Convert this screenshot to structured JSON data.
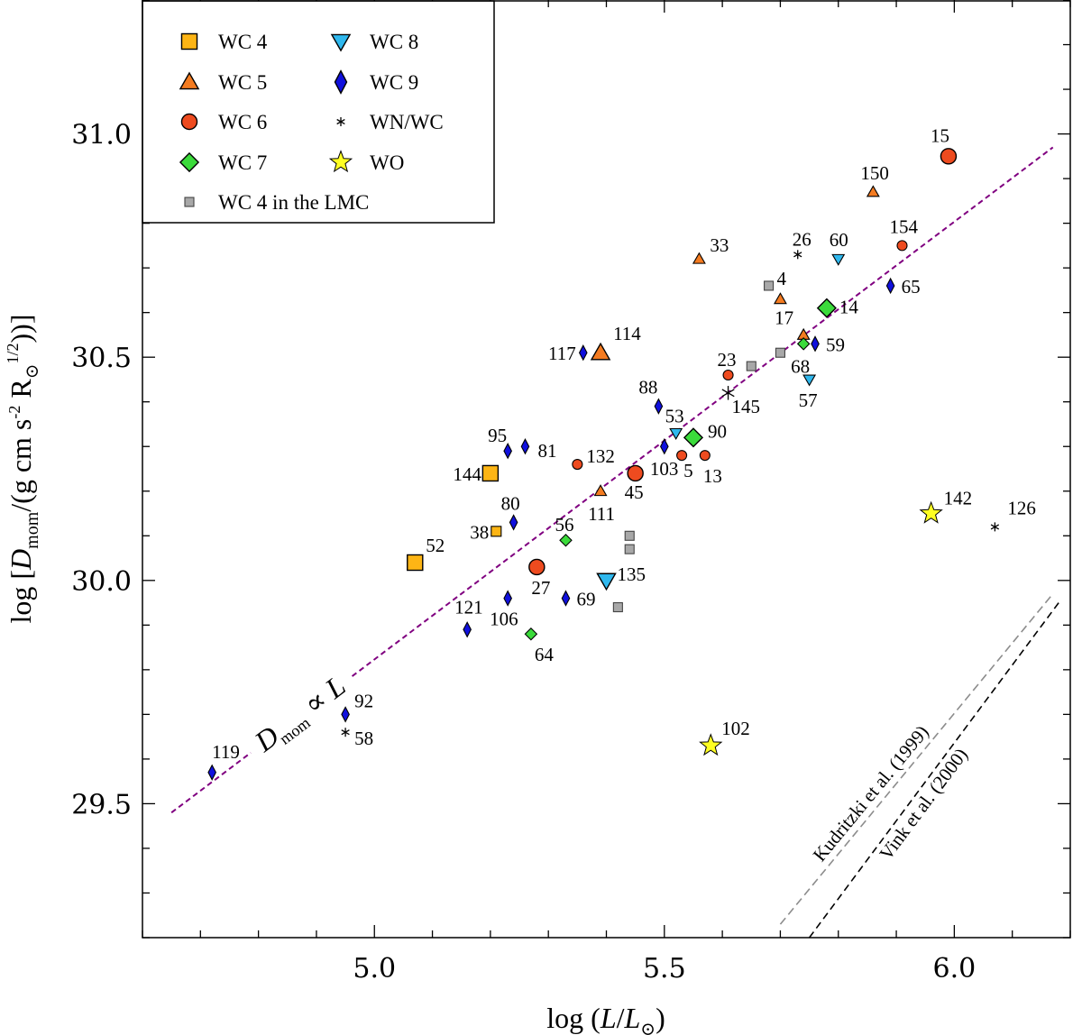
{
  "chart_data": {
    "type": "scatter",
    "xlabel": "log (L/L⊙)",
    "ylabel": "log [Dₘₒₘ/(g cm s⁻² R⊙¹′²)]",
    "xlabel_parts": [
      "log (",
      "L",
      "/",
      "L",
      "⊙",
      ")"
    ],
    "ylabel_parts": [
      "log [",
      "D",
      "mom",
      "/(g cm s",
      "-2",
      " R",
      "⊙",
      "1/2",
      "))]"
    ],
    "xlim": [
      4.6,
      6.2
    ],
    "ylim": [
      29.2,
      31.3
    ],
    "xticks": [
      5.0,
      5.5,
      6.0
    ],
    "xtick_labels": [
      "5.0",
      "5.5",
      "6.0"
    ],
    "yticks": [
      29.5,
      30.0,
      30.5,
      31.0
    ],
    "ytick_labels": [
      "29.5",
      "30.0",
      "30.5",
      "31.0"
    ],
    "x_minor_step": 0.1,
    "y_minor_step": 0.1,
    "legend_position": "top-left",
    "legend": [
      {
        "key": "wc4",
        "label": "WC 4"
      },
      {
        "key": "wc5",
        "label": "WC 5"
      },
      {
        "key": "wc6",
        "label": "WC 6"
      },
      {
        "key": "wc7",
        "label": "WC 7"
      },
      {
        "key": "lmc",
        "label": "WC 4 in the LMC"
      },
      {
        "key": "wc8",
        "label": "WC 8"
      },
      {
        "key": "wc9",
        "label": "WC 9"
      },
      {
        "key": "wnwc",
        "label": "WN/WC"
      },
      {
        "key": "wo",
        "label": "WO"
      }
    ],
    "styles": {
      "wc4": {
        "marker": "square",
        "color": "#FDB515"
      },
      "wc5": {
        "marker": "triangle-up",
        "color": "#F47B20"
      },
      "wc6": {
        "marker": "circle",
        "color": "#EE4B1F"
      },
      "wc7": {
        "marker": "diamond",
        "color": "#3BDB3B"
      },
      "wc8": {
        "marker": "triangle-down",
        "color": "#2FB8EE"
      },
      "wc9": {
        "marker": "thin-diamond",
        "color": "#1010DD"
      },
      "wnwc": {
        "marker": "asterisk",
        "color": "#000000"
      },
      "wo": {
        "marker": "star",
        "color": "#FFFF22"
      },
      "lmc": {
        "marker": "square",
        "color": "#A8A8A8"
      }
    },
    "points": [
      {
        "cls": "wc4",
        "x": 5.07,
        "y": 30.04,
        "label": "52",
        "big": true
      },
      {
        "cls": "wc4",
        "x": 5.2,
        "y": 30.24,
        "label": "144",
        "big": true
      },
      {
        "cls": "wc4",
        "x": 5.21,
        "y": 30.11,
        "label": "38",
        "big": false
      },
      {
        "cls": "wc5",
        "x": 5.39,
        "y": 30.51,
        "label": "114",
        "big": true
      },
      {
        "cls": "wc5",
        "x": 5.39,
        "y": 30.2,
        "label": "111",
        "big": false
      },
      {
        "cls": "wc5",
        "x": 5.56,
        "y": 30.72,
        "label": "33",
        "big": false
      },
      {
        "cls": "wc5",
        "x": 5.7,
        "y": 30.63,
        "label": "4",
        "big": false
      },
      {
        "cls": "wc5",
        "x": 5.74,
        "y": 30.55,
        "label": "17",
        "big": false
      },
      {
        "cls": "wc5",
        "x": 5.86,
        "y": 30.87,
        "label": "150",
        "big": false
      },
      {
        "cls": "wc6",
        "x": 5.99,
        "y": 30.95,
        "label": "15",
        "big": true
      },
      {
        "cls": "wc6",
        "x": 5.91,
        "y": 30.75,
        "label": "154",
        "big": false
      },
      {
        "cls": "wc6",
        "x": 5.61,
        "y": 30.46,
        "label": "23",
        "big": false
      },
      {
        "cls": "wc6",
        "x": 5.45,
        "y": 30.24,
        "label": "45",
        "big": true
      },
      {
        "cls": "wc6",
        "x": 5.35,
        "y": 30.26,
        "label": "132",
        "big": false
      },
      {
        "cls": "wc6",
        "x": 5.53,
        "y": 30.28,
        "label": "5",
        "big": false
      },
      {
        "cls": "wc6",
        "x": 5.57,
        "y": 30.28,
        "label": "13",
        "big": false
      },
      {
        "cls": "wc6",
        "x": 5.28,
        "y": 30.03,
        "label": "27",
        "big": true
      },
      {
        "cls": "wc7",
        "x": 5.78,
        "y": 30.61,
        "label": "14",
        "big": true
      },
      {
        "cls": "wc7",
        "x": 5.55,
        "y": 30.32,
        "label": "90",
        "big": true
      },
      {
        "cls": "wc7",
        "x": 5.74,
        "y": 30.53,
        "label": "68",
        "big": false
      },
      {
        "cls": "wc7",
        "x": 5.33,
        "y": 30.09,
        "label": "56",
        "big": false
      },
      {
        "cls": "wc7",
        "x": 5.27,
        "y": 29.88,
        "label": "64",
        "big": false
      },
      {
        "cls": "wc8",
        "x": 5.8,
        "y": 30.72,
        "label": "60",
        "big": false
      },
      {
        "cls": "wc8",
        "x": 5.75,
        "y": 30.45,
        "label": "57",
        "big": false
      },
      {
        "cls": "wc8",
        "x": 5.52,
        "y": 30.33,
        "label": "53",
        "big": false
      },
      {
        "cls": "wc8",
        "x": 5.4,
        "y": 30.0,
        "label": "135",
        "big": true
      },
      {
        "cls": "wc9",
        "x": 5.89,
        "y": 30.66,
        "label": "65",
        "big": false
      },
      {
        "cls": "wc9",
        "x": 5.76,
        "y": 30.53,
        "label": "59",
        "big": false
      },
      {
        "cls": "wc9",
        "x": 5.36,
        "y": 30.51,
        "label": "117",
        "big": false
      },
      {
        "cls": "wc9",
        "x": 5.49,
        "y": 30.39,
        "label": "88",
        "big": false
      },
      {
        "cls": "wc9",
        "x": 5.5,
        "y": 30.3,
        "label": "103",
        "big": false
      },
      {
        "cls": "wc9",
        "x": 5.23,
        "y": 30.29,
        "label": "95",
        "big": false
      },
      {
        "cls": "wc9",
        "x": 5.26,
        "y": 30.3,
        "label": "81",
        "big": false
      },
      {
        "cls": "wc9",
        "x": 5.24,
        "y": 30.13,
        "label": "80",
        "big": false
      },
      {
        "cls": "wc9",
        "x": 5.33,
        "y": 29.96,
        "label": "69",
        "big": false
      },
      {
        "cls": "wc9",
        "x": 5.23,
        "y": 29.96,
        "label": "106",
        "big": false
      },
      {
        "cls": "wc9",
        "x": 5.16,
        "y": 29.89,
        "label": "121",
        "big": false
      },
      {
        "cls": "wc9",
        "x": 4.95,
        "y": 29.7,
        "label": "92",
        "big": false
      },
      {
        "cls": "wc9",
        "x": 4.72,
        "y": 29.57,
        "label": "119",
        "big": false
      },
      {
        "cls": "wnwc",
        "x": 5.73,
        "y": 30.73,
        "label": "26",
        "big": false
      },
      {
        "cls": "wnwc",
        "x": 5.61,
        "y": 30.42,
        "label": "145",
        "big": true
      },
      {
        "cls": "wnwc",
        "x": 6.07,
        "y": 30.12,
        "label": "126",
        "big": false
      },
      {
        "cls": "wnwc",
        "x": 4.95,
        "y": 29.66,
        "label": "58",
        "big": false
      },
      {
        "cls": "wo",
        "x": 5.96,
        "y": 30.15,
        "label": "142",
        "big": true
      },
      {
        "cls": "wo",
        "x": 5.58,
        "y": 29.63,
        "label": "102",
        "big": true
      },
      {
        "cls": "lmc",
        "x": 5.68,
        "y": 30.66,
        "label": "",
        "big": false
      },
      {
        "cls": "lmc",
        "x": 5.65,
        "y": 30.48,
        "label": "",
        "big": false
      },
      {
        "cls": "lmc",
        "x": 5.7,
        "y": 30.51,
        "label": "",
        "big": false
      },
      {
        "cls": "lmc",
        "x": 5.44,
        "y": 30.1,
        "label": "",
        "big": false
      },
      {
        "cls": "lmc",
        "x": 5.44,
        "y": 30.07,
        "label": "",
        "big": false
      },
      {
        "cls": "lmc",
        "x": 5.42,
        "y": 29.94,
        "label": "",
        "big": false
      }
    ],
    "fit_line": {
      "label_parts": [
        "D",
        "mom",
        " ∝ ",
        "L"
      ],
      "color": "#800080",
      "x": [
        4.65,
        6.17
      ],
      "y": [
        29.48,
        30.97
      ]
    },
    "reference_lines": [
      {
        "label": "Kudritzki et al. (1999)",
        "color": "#8C8C8C",
        "x": [
          5.7,
          6.17
        ],
        "y": [
          29.23,
          29.97
        ]
      },
      {
        "label": "Vink et al. (2000)",
        "color": "#000000",
        "x": [
          5.75,
          6.18
        ],
        "y": [
          29.2,
          29.95
        ]
      }
    ]
  }
}
